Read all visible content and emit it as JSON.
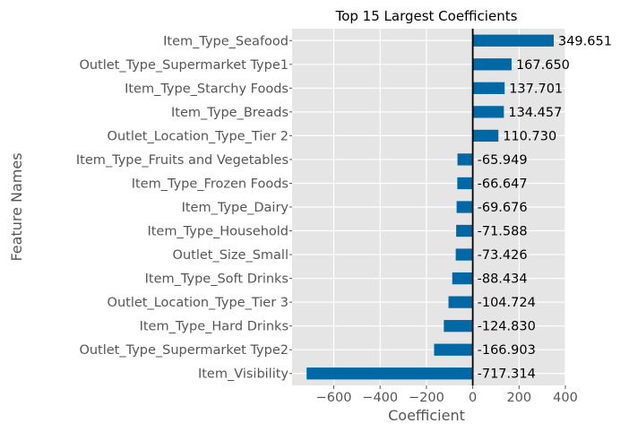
{
  "chart_data": {
    "type": "bar",
    "orientation": "horizontal",
    "title": "Top 15 Largest Coefficients",
    "xlabel": "Coefficient",
    "ylabel": "Feature Names",
    "xlim": [
      -780,
      400
    ],
    "xticks": [
      -600,
      -400,
      -200,
      0,
      200,
      400
    ],
    "xtick_labels": [
      "−600",
      "−400",
      "−200",
      "0",
      "200",
      "400"
    ],
    "grid": true,
    "colors": {
      "bar": "#0068a5",
      "background": "#e5e5e5",
      "grid": "#ffffff",
      "zero_line": "#000000"
    },
    "categories": [
      "Item_Type_Seafood",
      "Outlet_Type_Supermarket Type1",
      "Item_Type_Starchy Foods",
      "Item_Type_Breads",
      "Outlet_Location_Type_Tier 2",
      "Item_Type_Fruits and Vegetables",
      "Item_Type_Frozen Foods",
      "Item_Type_Dairy",
      "Item_Type_Household",
      "Outlet_Size_Small",
      "Item_Type_Soft Drinks",
      "Outlet_Location_Type_Tier 3",
      "Item_Type_Hard Drinks",
      "Outlet_Type_Supermarket Type2",
      "Item_Visibility"
    ],
    "values": [
      349.651,
      167.65,
      137.701,
      134.457,
      110.73,
      -65.949,
      -66.647,
      -69.676,
      -71.588,
      -73.426,
      -88.434,
      -104.724,
      -124.83,
      -166.903,
      -717.314
    ],
    "value_labels": [
      "349.651",
      "167.650",
      "137.701",
      "134.457",
      "110.730",
      "-65.949",
      "-66.647",
      "-69.676",
      "-71.588",
      "-73.426",
      "-88.434",
      "-104.724",
      "-124.830",
      "-166.903",
      "-717.314"
    ]
  }
}
